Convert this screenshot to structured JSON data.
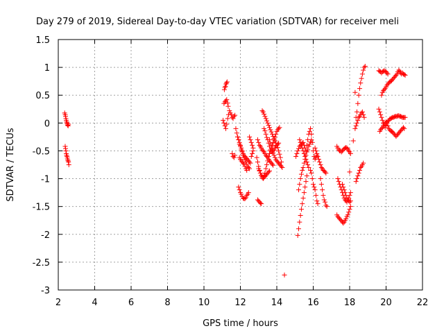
{
  "chart_data": {
    "type": "scatter",
    "title": "Day 279 of 2019, Sidereal Day-to-day VTEC variation (SDTVAR) for receiver meli",
    "xlabel": "GPS time / hours",
    "ylabel": "SDTVAR / TECUs",
    "xlim": [
      2,
      22
    ],
    "ylim": [
      -3,
      1.5
    ],
    "xticks": [
      2,
      4,
      6,
      8,
      10,
      12,
      14,
      16,
      18,
      20,
      22
    ],
    "yticks": [
      -3,
      -2.5,
      -2,
      -1.5,
      -1,
      -0.5,
      0,
      0.5,
      1,
      1.5
    ],
    "ytick_labels": [
      "-3",
      "-2.5",
      "-2",
      "-1.5",
      "-1",
      "-0.5",
      "0",
      "0.5",
      "1",
      "1.5"
    ],
    "grid": true,
    "marker": "+",
    "color": "#ff0000",
    "series": [
      {
        "name": "SDTVAR",
        "x": [
          2.35,
          2.38,
          2.4,
          2.42,
          2.44,
          2.46,
          2.48,
          2.5,
          2.52,
          2.54,
          2.56,
          2.38,
          2.4,
          2.42,
          2.44,
          2.46,
          2.48,
          2.5,
          2.52,
          2.54,
          2.56,
          2.58,
          11.1,
          11.15,
          11.2,
          11.25,
          11.3,
          11.33,
          11.12,
          11.15,
          11.18,
          11.21,
          11.24,
          11.27,
          11.05,
          11.1,
          11.15,
          11.2,
          11.25,
          11.3,
          11.35,
          11.4,
          11.45,
          11.5,
          11.55,
          11.6,
          11.65,
          11.7,
          11.55,
          11.6,
          11.65,
          11.7,
          11.75,
          11.8,
          11.85,
          11.9,
          11.95,
          12.0,
          12.05,
          12.1,
          12.15,
          12.2,
          12.25,
          12.3,
          12.35,
          12.4,
          12.45,
          12.5,
          12.55,
          12.6,
          12.65,
          12.7,
          11.85,
          11.9,
          11.95,
          12.0,
          12.05,
          12.1,
          12.15,
          12.2,
          12.25,
          12.3,
          12.35,
          12.4,
          12.45,
          12.5,
          11.9,
          11.95,
          12.0,
          12.05,
          12.1,
          12.15,
          12.2,
          12.25,
          12.3,
          12.35,
          12.4,
          12.45,
          11.95,
          12.0,
          12.05,
          12.1,
          12.15,
          12.2,
          12.25,
          12.3,
          12.35,
          12.5,
          12.55,
          12.6,
          12.65,
          12.7,
          12.95,
          13.0,
          13.05,
          13.1,
          13.15,
          12.9,
          12.95,
          13.0,
          13.05,
          13.1,
          13.15,
          13.2,
          13.25,
          13.3,
          13.35,
          13.4,
          13.45,
          13.5,
          13.55,
          13.6,
          13.65,
          13.7,
          13.75,
          13.8,
          13.85,
          13.9,
          13.95,
          14.0,
          14.05,
          14.1,
          14.15,
          12.95,
          13.0,
          13.05,
          13.1,
          13.15,
          13.2,
          13.25,
          13.3,
          13.35,
          13.4,
          13.45,
          13.5,
          13.55,
          13.6,
          13.65,
          13.7,
          13.75,
          13.8,
          13.0,
          13.05,
          13.1,
          13.15,
          13.2,
          13.25,
          13.3,
          13.35,
          13.4,
          13.45,
          13.5,
          13.55,
          13.6,
          13.2,
          13.25,
          13.3,
          13.35,
          13.4,
          13.45,
          13.5,
          13.55,
          13.6,
          13.65,
          13.7,
          13.75,
          13.8,
          13.85,
          13.9,
          13.95,
          14.0,
          14.05,
          14.1,
          14.15,
          14.2,
          14.25,
          13.3,
          13.35,
          13.4,
          13.45,
          13.5,
          13.55,
          13.6,
          13.65,
          13.7,
          13.75,
          13.8,
          13.85,
          13.9,
          13.95,
          14.0,
          14.05,
          14.1,
          13.6,
          13.65,
          13.7,
          13.75,
          13.8,
          13.85,
          13.9,
          13.95,
          14.0,
          14.05,
          14.1,
          14.15,
          14.2,
          14.25,
          14.3,
          14.42,
          15.05,
          15.1,
          15.15,
          15.2,
          15.25,
          15.3,
          15.35,
          15.4,
          15.45,
          15.5,
          15.55,
          15.6,
          15.65,
          15.7,
          15.75,
          15.8,
          15.85,
          15.9,
          15.95,
          16.0,
          16.05,
          16.1,
          16.15,
          16.2,
          15.2,
          15.25,
          15.3,
          15.35,
          15.4,
          15.45,
          15.5,
          15.55,
          15.6,
          15.65,
          15.7,
          15.75,
          15.8,
          15.85,
          15.9,
          15.15,
          15.2,
          15.25,
          15.3,
          15.35,
          15.4,
          15.45,
          15.5,
          15.55,
          15.6,
          15.65,
          15.25,
          15.3,
          15.35,
          15.4,
          15.45,
          15.5,
          15.55,
          15.6,
          15.65,
          15.7,
          15.75,
          15.85,
          15.9,
          15.95,
          16.0,
          16.05,
          16.1,
          16.15,
          16.2,
          16.25,
          16.1,
          16.15,
          16.2,
          16.25,
          16.3,
          16.35,
          16.4,
          16.45,
          16.5,
          16.55,
          16.6,
          16.65,
          16.7,
          16.4,
          16.45,
          16.5,
          16.55,
          16.6,
          16.65,
          16.7,
          16.75,
          17.3,
          17.35,
          17.4,
          17.45,
          17.5,
          17.55,
          17.6,
          17.65,
          17.7,
          17.75,
          17.8,
          17.85,
          17.9,
          17.95,
          18.0,
          18.05,
          17.35,
          17.4,
          17.45,
          17.5,
          17.55,
          17.6,
          17.65,
          17.7,
          17.75,
          17.8,
          17.85,
          17.9,
          17.95,
          18.0,
          18.05,
          17.3,
          17.35,
          17.4,
          17.45,
          17.5,
          17.55,
          17.6,
          17.65,
          17.7,
          17.75,
          17.8,
          17.85,
          17.9,
          17.95,
          18.0,
          18.05,
          17.6,
          17.65,
          17.7,
          17.75,
          17.8,
          17.85,
          17.9,
          17.95,
          18.0,
          18.05,
          18.0,
          18.2,
          18.3,
          18.35,
          18.4,
          18.45,
          18.5,
          18.55,
          18.6,
          18.65,
          18.7,
          18.75,
          18.8,
          18.85,
          18.3,
          18.35,
          18.4,
          18.45,
          18.5,
          18.55,
          18.6,
          18.65,
          18.7,
          18.75,
          18.8,
          18.35,
          18.4,
          18.45,
          18.5,
          18.55,
          18.6,
          18.65,
          18.7,
          18.75,
          19.6,
          19.65,
          19.7,
          19.75,
          19.8,
          19.85,
          19.9,
          19.95,
          20.0,
          20.05,
          20.1,
          19.75,
          19.8,
          19.85,
          19.9,
          19.95,
          20.0,
          20.05,
          20.1,
          20.15,
          20.2,
          20.25,
          20.3,
          20.35,
          20.4,
          20.45,
          20.5,
          20.55,
          20.6,
          20.65,
          20.7,
          20.75,
          20.8,
          20.85,
          20.9,
          20.95,
          21.0,
          21.05,
          19.6,
          19.65,
          19.7,
          19.75,
          19.8,
          19.85,
          19.9,
          19.95,
          20.0,
          20.05,
          20.1,
          20.15,
          20.2,
          20.25,
          20.3,
          20.35,
          20.4,
          20.45,
          20.5,
          20.55,
          20.6,
          20.65,
          20.7,
          20.75,
          20.8,
          20.85,
          20.9,
          20.95,
          21.0,
          21.05,
          19.65,
          19.7,
          19.75,
          19.8,
          19.85,
          19.9,
          19.95,
          20.0,
          20.05,
          20.1,
          20.15,
          20.2,
          20.25,
          20.3,
          20.35,
          20.4,
          20.45,
          20.5,
          20.55,
          20.6,
          20.65,
          20.7,
          20.75,
          20.8,
          20.85,
          20.9,
          20.95,
          21.0
        ],
        "y": [
          0.18,
          0.15,
          0.12,
          0.08,
          0.05,
          0.02,
          0.0,
          -0.02,
          -0.04,
          -0.05,
          -0.02,
          -0.42,
          -0.46,
          -0.5,
          -0.55,
          -0.58,
          -0.6,
          -0.63,
          -0.66,
          -0.68,
          -0.7,
          -0.75,
          0.35,
          0.38,
          0.4,
          0.42,
          0.36,
          0.3,
          0.6,
          0.64,
          0.66,
          0.7,
          0.72,
          0.74,
          0.05,
          0.0,
          -0.05,
          -0.1,
          -0.02,
          0.08,
          0.15,
          0.22,
          0.18,
          0.15,
          0.1,
          0.08,
          0.12,
          0.14,
          -0.55,
          -0.6,
          -0.62,
          -0.58,
          -0.1,
          -0.18,
          -0.25,
          -0.3,
          -0.35,
          -0.4,
          -0.45,
          -0.5,
          -0.55,
          -0.58,
          -0.6,
          -0.62,
          -0.64,
          -0.66,
          -0.68,
          -0.7,
          -0.72,
          -0.6,
          -0.55,
          -0.5,
          -0.25,
          -0.3,
          -0.38,
          -0.42,
          -0.48,
          -0.52,
          -0.58,
          -0.62,
          -0.66,
          -0.7,
          -0.74,
          -0.78,
          -0.8,
          -0.82,
          -1.15,
          -1.2,
          -1.25,
          -1.28,
          -1.32,
          -1.35,
          -1.36,
          -1.36,
          -1.34,
          -1.3,
          -1.28,
          -1.25,
          -0.62,
          -0.65,
          -0.68,
          -0.7,
          -0.72,
          -0.74,
          -0.78,
          -0.82,
          -0.85,
          -0.25,
          -0.3,
          -0.35,
          -0.4,
          -0.45,
          -1.38,
          -1.4,
          -1.42,
          -1.44,
          -1.45,
          -0.62,
          -0.7,
          -0.78,
          -0.85,
          -0.9,
          -0.94,
          -0.96,
          -0.98,
          -0.95,
          -0.9,
          -0.82,
          -0.75,
          -0.68,
          -0.6,
          -0.55,
          -0.5,
          -0.45,
          -0.4,
          -0.35,
          -0.3,
          -0.25,
          -0.2,
          -0.15,
          -0.12,
          -0.1,
          -0.08,
          -0.3,
          -0.35,
          -0.4,
          -0.42,
          -0.45,
          -0.48,
          -0.5,
          -0.52,
          -0.55,
          -0.58,
          -0.6,
          -0.62,
          -0.65,
          -0.68,
          -0.7,
          -0.72,
          -0.74,
          -0.76,
          -0.82,
          -0.86,
          -0.9,
          -0.94,
          -0.98,
          -1.0,
          -0.98,
          -0.96,
          -0.94,
          -0.92,
          -0.9,
          -0.88,
          -0.86,
          0.22,
          0.2,
          0.16,
          0.12,
          0.08,
          0.04,
          0.0,
          -0.04,
          -0.08,
          -0.12,
          -0.16,
          -0.2,
          -0.24,
          -0.28,
          -0.32,
          -0.36,
          -0.4,
          -0.44,
          -0.5,
          -0.56,
          -0.62,
          -0.7,
          -0.1,
          -0.14,
          -0.2,
          -0.26,
          -0.3,
          -0.36,
          -0.42,
          -0.48,
          -0.5,
          -0.52,
          -0.5,
          -0.48,
          -0.45,
          -0.42,
          -0.4,
          -0.38,
          -0.36,
          -0.3,
          -0.36,
          -0.42,
          -0.48,
          -0.54,
          -0.58,
          -0.62,
          -0.66,
          -0.68,
          -0.7,
          -0.72,
          -0.74,
          -0.76,
          -0.78,
          -0.8,
          -2.73,
          -0.6,
          -0.55,
          -0.5,
          -0.46,
          -0.42,
          -0.4,
          -0.38,
          -0.36,
          -0.35,
          -0.4,
          -0.45,
          -0.5,
          -0.4,
          -0.3,
          -0.2,
          -0.15,
          -0.1,
          -0.2,
          -0.35,
          -0.5,
          -0.6,
          -0.65,
          -0.62,
          -0.58,
          -1.2,
          -1.1,
          -1.0,
          -0.92,
          -0.85,
          -0.8,
          -0.72,
          -0.65,
          -0.58,
          -0.52,
          -0.48,
          -0.42,
          -0.38,
          -0.34,
          -0.3,
          -2.02,
          -1.9,
          -1.78,
          -1.66,
          -1.55,
          -1.45,
          -1.35,
          -1.25,
          -1.15,
          -1.05,
          -0.95,
          -0.3,
          -0.35,
          -0.4,
          -0.45,
          -0.5,
          -0.55,
          -0.6,
          -0.65,
          -0.7,
          -0.75,
          -0.8,
          -0.85,
          -0.9,
          -1.0,
          -1.1,
          -1.15,
          -1.2,
          -1.3,
          -1.4,
          -1.45,
          -0.45,
          -0.5,
          -0.55,
          -0.6,
          -0.65,
          -0.7,
          -0.75,
          -0.8,
          -0.82,
          -0.85,
          -0.86,
          -0.88,
          -0.9,
          -1.0,
          -1.1,
          -1.2,
          -1.3,
          -1.38,
          -1.42,
          -1.48,
          -1.5,
          -0.42,
          -0.45,
          -0.48,
          -0.5,
          -0.5,
          -0.52,
          -0.5,
          -0.48,
          -0.46,
          -0.45,
          -0.44,
          -0.45,
          -0.47,
          -0.5,
          -0.52,
          -0.55,
          -1.0,
          -1.05,
          -1.1,
          -1.15,
          -1.2,
          -1.25,
          -1.3,
          -1.35,
          -1.38,
          -1.4,
          -1.42,
          -1.38,
          -1.35,
          -1.3,
          -1.25,
          -1.65,
          -1.68,
          -1.7,
          -1.72,
          -1.74,
          -1.76,
          -1.78,
          -1.8,
          -1.78,
          -1.75,
          -1.72,
          -1.68,
          -1.65,
          -1.6,
          -1.55,
          -1.5,
          -1.1,
          -1.15,
          -1.2,
          -1.25,
          -1.3,
          -1.35,
          -1.38,
          -1.4,
          -1.42,
          -1.4,
          -0.88,
          -0.32,
          0.55,
          0.1,
          0.2,
          0.35,
          0.5,
          0.62,
          0.72,
          0.8,
          0.88,
          0.95,
          1.0,
          1.02,
          -0.1,
          -0.05,
          0.0,
          0.05,
          0.1,
          0.12,
          0.15,
          0.18,
          0.2,
          0.15,
          0.1,
          -1.05,
          -1.0,
          -0.95,
          -0.9,
          -0.85,
          -0.8,
          -0.78,
          -0.75,
          -0.72,
          0.94,
          0.93,
          0.92,
          0.9,
          0.92,
          0.93,
          0.94,
          0.93,
          0.92,
          0.9,
          0.88,
          0.5,
          0.55,
          0.58,
          0.6,
          0.62,
          0.65,
          0.68,
          0.7,
          0.72,
          0.74,
          0.75,
          0.76,
          0.78,
          0.8,
          0.82,
          0.84,
          0.86,
          0.88,
          0.92,
          0.95,
          0.93,
          0.9,
          0.88,
          0.9,
          0.88,
          0.87,
          0.86,
          0.25,
          0.2,
          0.15,
          0.1,
          0.05,
          0.0,
          -0.05,
          -0.08,
          -0.04,
          0.0,
          0.03,
          0.05,
          0.07,
          0.08,
          0.09,
          0.1,
          0.1,
          0.11,
          0.12,
          0.12,
          0.12,
          0.13,
          0.13,
          0.12,
          0.12,
          0.11,
          0.1,
          0.1,
          0.1,
          0.1,
          -0.15,
          -0.12,
          -0.1,
          -0.08,
          -0.05,
          -0.02,
          0.0,
          0.02,
          0.0,
          -0.05,
          -0.1,
          -0.12,
          -0.14,
          -0.15,
          -0.16,
          -0.18,
          -0.2,
          -0.22,
          -0.24,
          -0.22,
          -0.2,
          -0.18,
          -0.16,
          -0.14,
          -0.12,
          -0.1,
          -0.08,
          -0.1
        ]
      }
    ]
  }
}
